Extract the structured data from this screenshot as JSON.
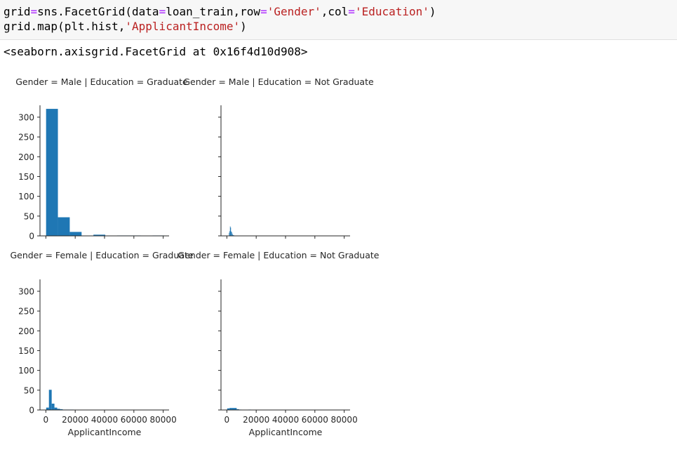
{
  "code": {
    "line1": [
      {
        "t": "grid",
        "c": "plain"
      },
      {
        "t": "=",
        "c": "op"
      },
      {
        "t": "sns.FacetGrid(data",
        "c": "plain"
      },
      {
        "t": "=",
        "c": "op"
      },
      {
        "t": "loan_train,row",
        "c": "plain"
      },
      {
        "t": "=",
        "c": "op"
      },
      {
        "t": "'Gender'",
        "c": "str"
      },
      {
        "t": ",col",
        "c": "plain"
      },
      {
        "t": "=",
        "c": "op"
      },
      {
        "t": "'Education'",
        "c": "str"
      },
      {
        "t": ")",
        "c": "plain"
      }
    ],
    "line2": [
      {
        "t": "grid.map(plt.hist,",
        "c": "plain"
      },
      {
        "t": "'ApplicantIncome'",
        "c": "str"
      },
      {
        "t": ")",
        "c": "plain"
      }
    ]
  },
  "output_repr": "<seaborn.axisgrid.FacetGrid at 0x16f4d10d908>",
  "colors": {
    "bar": "#1f77b4",
    "axis": "#262626"
  },
  "chart_data": {
    "type": "bar",
    "subtype": "histogram-facet-grid",
    "xlabel": "ApplicantIncome",
    "ylim": [
      0,
      330
    ],
    "yticks": [
      0,
      50,
      100,
      150,
      200,
      250,
      300
    ],
    "xlim": [
      -4000,
      84000
    ],
    "xticks": [
      0,
      20000,
      40000,
      60000,
      80000
    ],
    "xtick_labels": [
      "0",
      "20000",
      "40000",
      "60000",
      "80000"
    ],
    "panels": [
      {
        "row": 0,
        "col": 0,
        "title": "Gender = Male | Education = Graduate",
        "bins": [
          150,
          8220,
          16290,
          24360,
          32430,
          40500,
          48570,
          56640,
          64710,
          72780,
          80850
        ],
        "counts": [
          321,
          47,
          10,
          0,
          3,
          0,
          1,
          1,
          0,
          1
        ],
        "show_xticklabels": false,
        "show_xlabel": false
      },
      {
        "row": 0,
        "col": 1,
        "title": "Gender = Male | Education = Not Graduate",
        "bins": [
          1442,
          1782,
          2122,
          2462,
          2802,
          3142,
          3482,
          3822,
          4162,
          4502,
          4842
        ],
        "counts": [
          8,
          12,
          24,
          21,
          11,
          10,
          6,
          3,
          2,
          2
        ],
        "show_xticklabels": false,
        "show_xlabel": false
      },
      {
        "row": 1,
        "col": 0,
        "title": "Gender = Female | Education = Graduate",
        "bins": [
          210,
          2090,
          3970,
          5850,
          7730,
          9610,
          11490,
          13370,
          15250,
          17130,
          19010
        ],
        "counts": [
          6,
          51,
          16,
          6,
          3,
          2,
          1,
          1,
          1,
          1
        ],
        "show_xticklabels": true,
        "show_xlabel": true
      },
      {
        "row": 1,
        "col": 1,
        "title": "Gender = Female | Education = Not Graduate",
        "bins": [
          210,
          1829,
          3448,
          5067,
          6686,
          8305,
          9924,
          11543,
          13162,
          14781,
          16400
        ],
        "counts": [
          4,
          5,
          5,
          5,
          2,
          1,
          0,
          0,
          0,
          1
        ],
        "show_xticklabels": true,
        "show_xlabel": true
      }
    ]
  }
}
